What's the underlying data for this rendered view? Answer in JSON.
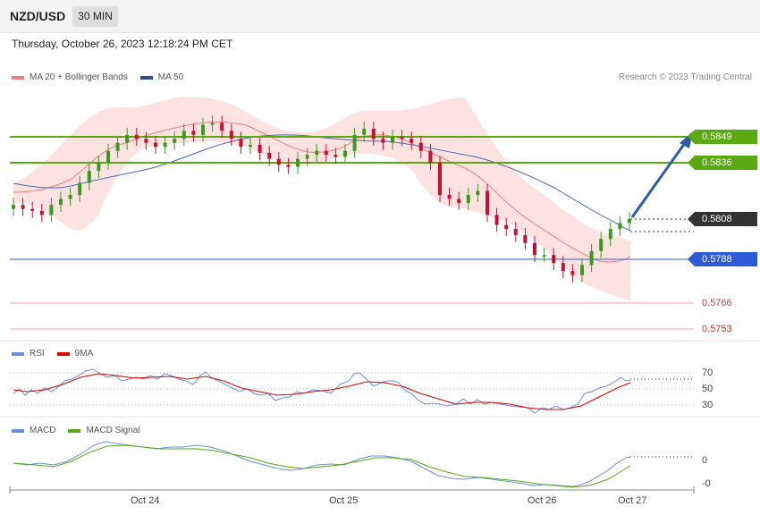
{
  "header": {
    "symbol": "NZD/USD",
    "timeframe": "30 MIN",
    "datetime": "Thursday, October 26, 2023 12:18:24 PM CET",
    "copyright": "Research © 2023 Trading Central"
  },
  "legend": {
    "ma20": "MA 20 + Bollinger Bands",
    "ma50": "MA 50",
    "rsi": "RSI",
    "rsi_ma": "9MA",
    "macd": "MACD",
    "macd_signal": "MACD Signal"
  },
  "colors": {
    "bollinger_fill": "#fde2e2",
    "ma20": "#f08080",
    "ma50": "#4a69b5",
    "resistance": "#5aa812",
    "support": "#2d5bd8",
    "support_red": "#e03030",
    "current": "#333333",
    "up_candle": "#3a9a1e",
    "down_candle": "#c8102e",
    "arrow": "#2a5caa",
    "rsi_line": "#6b8fe0",
    "rsi_ma_line": "#e00000",
    "macd_line": "#6b8fe0",
    "macd_signal_line": "#5aa812"
  },
  "levels": {
    "r2": "0.5849",
    "r1": "0.5836",
    "current": "0.5808",
    "s1": "0.5788",
    "s2": "0.5766",
    "s3": "0.5753"
  },
  "rsi_levels": [
    "70",
    "50",
    "30"
  ],
  "macd_levels": [
    "0",
    "-0"
  ],
  "x_axis": [
    "Oct 24",
    "Oct 25",
    "Oct 26",
    "Oct 27"
  ],
  "chart_data": {
    "type": "candlestick",
    "ylim": [
      0.575,
      0.5875
    ],
    "closes": [
      0.5815,
      0.5813,
      0.5812,
      0.581,
      0.5815,
      0.5818,
      0.582,
      0.5826,
      0.5832,
      0.5836,
      0.5842,
      0.5846,
      0.585,
      0.5848,
      0.5846,
      0.5844,
      0.5846,
      0.5848,
      0.5852,
      0.585,
      0.5855,
      0.5856,
      0.5852,
      0.5848,
      0.5844,
      0.5845,
      0.5841,
      0.5838,
      0.5835,
      0.5834,
      0.5838,
      0.584,
      0.5842,
      0.584,
      0.5839,
      0.5842,
      0.585,
      0.5853,
      0.5848,
      0.5846,
      0.5849,
      0.5848,
      0.5846,
      0.5842,
      0.5836,
      0.582,
      0.5818,
      0.5816,
      0.582,
      0.5822,
      0.581,
      0.5805,
      0.5803,
      0.58,
      0.5796,
      0.579,
      0.579,
      0.5786,
      0.5782,
      0.578,
      0.5785,
      0.5792,
      0.5798,
      0.5803,
      0.5806,
      0.5808
    ]
  }
}
